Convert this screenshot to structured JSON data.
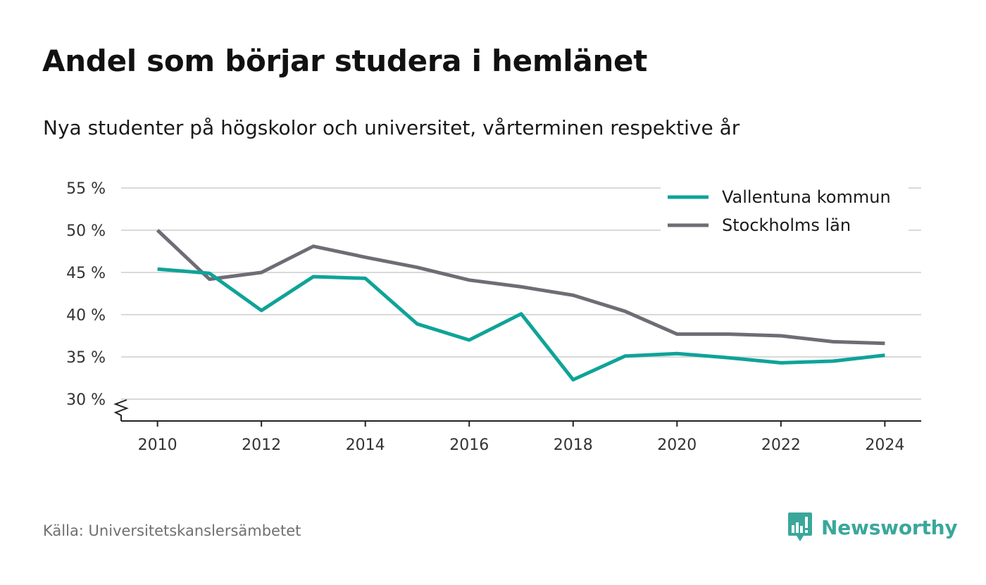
{
  "title": "Andel som börjar studera i hemlänet",
  "subtitle": "Nya studenter på högskolor och universitet, vårterminen respektive år",
  "source": "Källa: Universitetskanslersämbetet",
  "brand": {
    "name": "Newsworthy",
    "icon": "newsworthy-logo-icon",
    "color": "#3aa79b"
  },
  "chart_data": {
    "type": "line",
    "title": "Andel som börjar studera i hemlänet",
    "subtitle": "Nya studenter på högskolor och universitet, vårterminen respektive år",
    "x": [
      2010,
      2011,
      2012,
      2013,
      2014,
      2015,
      2016,
      2017,
      2018,
      2019,
      2020,
      2021,
      2022,
      2023,
      2024
    ],
    "x_ticks": [
      2010,
      2012,
      2014,
      2016,
      2018,
      2020,
      2022,
      2024
    ],
    "x_tick_labels": [
      "2010",
      "2012",
      "2014",
      "2016",
      "2018",
      "2020",
      "2022",
      "2024"
    ],
    "xlim": [
      2009.3,
      2024.7
    ],
    "y_ticks": [
      30,
      35,
      40,
      45,
      50,
      55
    ],
    "y_tick_labels": [
      "30 %",
      "35 %",
      "40 %",
      "45 %",
      "50 %",
      "55 %"
    ],
    "ylim": [
      27.5,
      55
    ],
    "y_axis_break": true,
    "grid": true,
    "legend_position": "top-right",
    "series": [
      {
        "name": "Vallentuna kommun",
        "color": "#0fa398",
        "values": [
          45.4,
          44.9,
          40.5,
          44.5,
          44.3,
          38.9,
          37.0,
          40.1,
          32.3,
          35.1,
          35.4,
          34.9,
          34.3,
          34.5,
          35.2
        ]
      },
      {
        "name": "Stockholms län",
        "color": "#6e6d75",
        "values": [
          50.0,
          44.2,
          45.0,
          48.1,
          46.8,
          45.6,
          44.1,
          43.3,
          42.3,
          40.4,
          37.7,
          37.7,
          37.5,
          36.8,
          36.6
        ]
      }
    ]
  }
}
